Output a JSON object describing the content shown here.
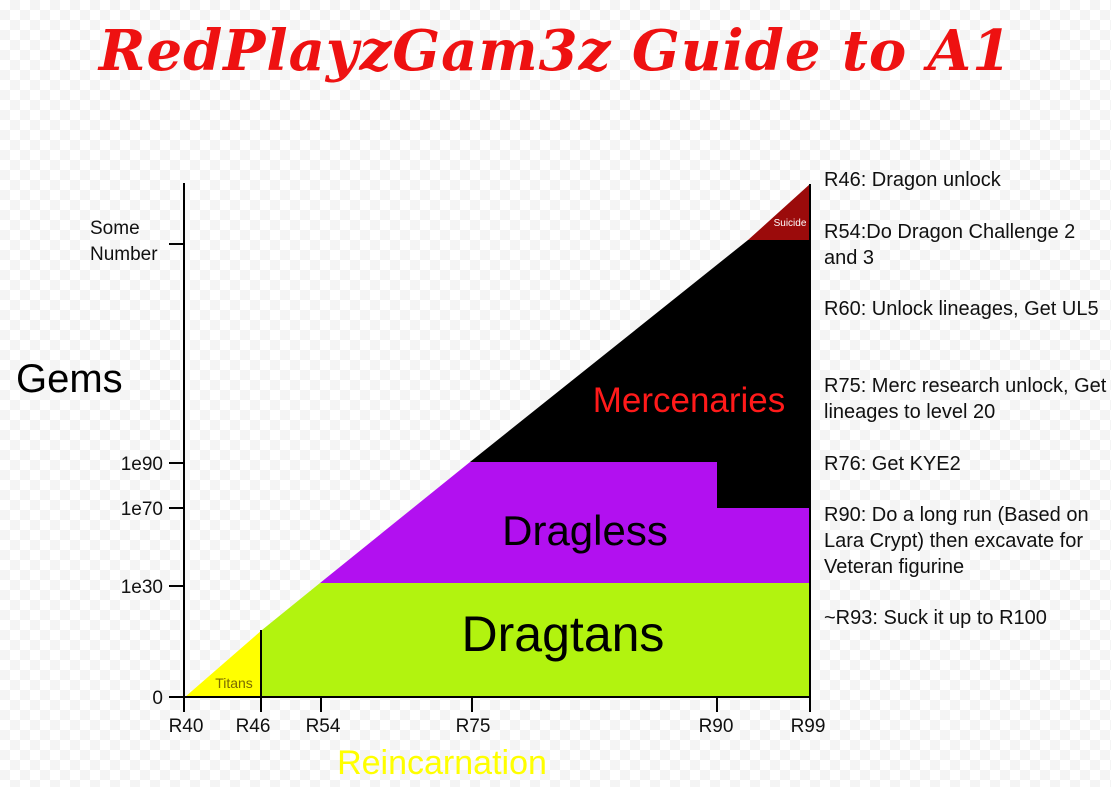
{
  "title": "RedPlayzGam3z Guide to A1",
  "colors": {
    "title": "#ee1111",
    "titans": "#ffff00",
    "dragtans": "#b2f30f",
    "dragless": "#b210f0",
    "mercenaries": "#000000",
    "mercenaries_text": "#ff1a1a",
    "suicide": "#9b0b0b",
    "xlabel": "#ffff00",
    "axis": "#000000"
  },
  "axes": {
    "y_label": "Gems",
    "x_label": "Reincarnation",
    "y_ticks": [
      "0",
      "1e30",
      "1e70",
      "1e90",
      "Some Number"
    ],
    "x_ticks": [
      "R40",
      "R46",
      "R54",
      "R75",
      "R90",
      "R99"
    ]
  },
  "regions": {
    "titans": "Titans",
    "dragtans": "Dragtans",
    "dragless": "Dragless",
    "mercenaries": "Mercenaries",
    "suicide": "Suicide"
  },
  "notes": [
    "R46: Dragon unlock",
    "R54:Do Dragon Challenge 2 and 3",
    "R60: Unlock lineages, Get UL5",
    "R75: Merc research unlock, Get lineages to level 20",
    "R76: Get KYE2",
    "R90: Do a long run (Based on Lara Crypt) then excavate for Veteran figurine",
    "~R93: Suck it up to R100"
  ]
}
